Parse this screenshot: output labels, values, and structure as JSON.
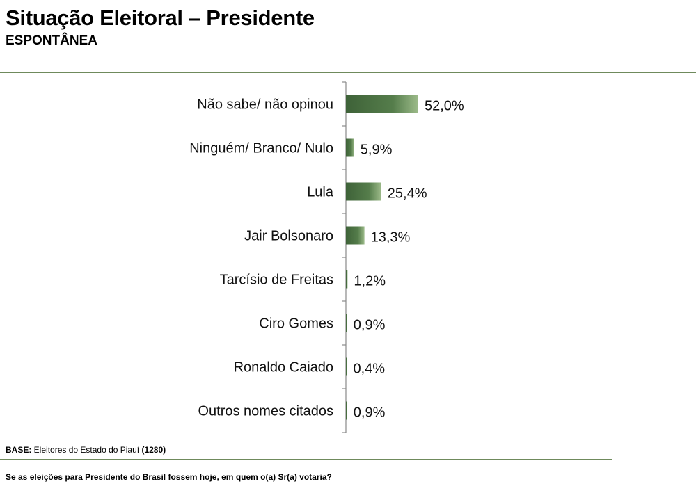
{
  "header": {
    "title": "Situação Eleitoral – Presidente",
    "subtitle": "ESPONTÂNEA"
  },
  "chart_data": {
    "type": "bar",
    "orientation": "horizontal",
    "categories": [
      "Não sabe/ não opinou",
      "Ninguém/ Branco/ Nulo",
      "Lula",
      "Jair Bolsonaro",
      "Tarcísio de Freitas",
      "Ciro Gomes",
      "Ronaldo Caiado",
      "Outros nomes citados"
    ],
    "values": [
      52.0,
      5.9,
      25.4,
      13.3,
      1.2,
      0.9,
      0.4,
      0.9
    ],
    "value_labels": [
      "52,0%",
      "5,9%",
      "25,4%",
      "13,3%",
      "1,2%",
      "0,9%",
      "0,4%",
      "0,9%"
    ],
    "unit": "%",
    "xlim": [
      0,
      100
    ],
    "grid": false,
    "legend": "none",
    "colors": {
      "bar_dark": "#3e6238",
      "bar_light": "#8fb07c",
      "axis": "#8a8a8a"
    }
  },
  "footer": {
    "base_label": "BASE:",
    "base_text": " Eleitores do Estado do Piauí ",
    "base_count": "(1280)",
    "question": "Se as eleições para Presidente do Brasil fossem hoje, em quem o(a) Sr(a) votaria?"
  }
}
